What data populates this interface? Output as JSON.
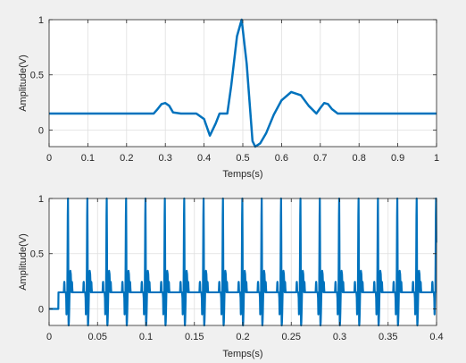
{
  "chart_data": [
    {
      "type": "line",
      "xlabel": "Temps(s)",
      "ylabel": "Amplitude(V)",
      "xlim": [
        0,
        1
      ],
      "ylim": [
        -0.15,
        1.0
      ],
      "xticks": [
        0,
        0.1,
        0.2,
        0.3,
        0.4,
        0.5,
        0.6,
        0.7,
        0.8,
        0.9,
        1
      ],
      "xtick_labels": [
        "0",
        "0.1",
        "0.2",
        "0.3",
        "0.4",
        "0.5",
        "0.6",
        "0.7",
        "0.8",
        "0.9",
        "1"
      ],
      "yticks": [
        0,
        0.5,
        1
      ],
      "ytick_labels": [
        "0",
        "0.5",
        "1"
      ],
      "grid": true,
      "color": "#0072bd",
      "series": [
        {
          "x": [
            0,
            0.27,
            0.28,
            0.29,
            0.3,
            0.31,
            0.32,
            0.34,
            0.38,
            0.4,
            0.415,
            0.43,
            0.44,
            0.46,
            0.47,
            0.485,
            0.497,
            0.51,
            0.525,
            0.532,
            0.545,
            0.56,
            0.58,
            0.6,
            0.625,
            0.65,
            0.67,
            0.69,
            0.7,
            0.71,
            0.72,
            0.73,
            0.745,
            0.76,
            1.0
          ],
          "y": [
            0.15,
            0.15,
            0.19,
            0.235,
            0.245,
            0.22,
            0.16,
            0.15,
            0.15,
            0.1,
            -0.05,
            0.06,
            0.15,
            0.15,
            0.4,
            0.85,
            1.0,
            0.6,
            -0.1,
            -0.155,
            -0.12,
            -0.03,
            0.14,
            0.27,
            0.345,
            0.315,
            0.22,
            0.15,
            0.2,
            0.245,
            0.235,
            0.19,
            0.15,
            0.15,
            0.15
          ]
        }
      ]
    },
    {
      "type": "line",
      "xlabel": "Temps(s)",
      "ylabel": "Amplitude(V)",
      "xlim": [
        0,
        0.4
      ],
      "ylim": [
        -0.15,
        1.0
      ],
      "xticks": [
        0,
        0.05,
        0.1,
        0.15,
        0.2,
        0.25,
        0.3,
        0.35,
        0.4
      ],
      "xtick_labels": [
        "0",
        "0.05",
        "0.1",
        "0.15",
        "0.2",
        "0.25",
        "0.3",
        "0.35",
        "0.4"
      ],
      "yticks": [
        0,
        0.5,
        1
      ],
      "ytick_labels": [
        "0",
        "0.5",
        "1"
      ],
      "grid": true,
      "color": "#0072bd",
      "pulse_period_s": 0.02,
      "first_pulse_s": 0.0195,
      "signal_start_s": 0.0095,
      "series": [
        {
          "note_levels": {
            "baseline_before_start": 0,
            "baseline": 0.15,
            "peak": 1.0,
            "min": -0.15,
            "p_wave": 0.34,
            "t_wave": 0.35
          }
        }
      ]
    }
  ]
}
